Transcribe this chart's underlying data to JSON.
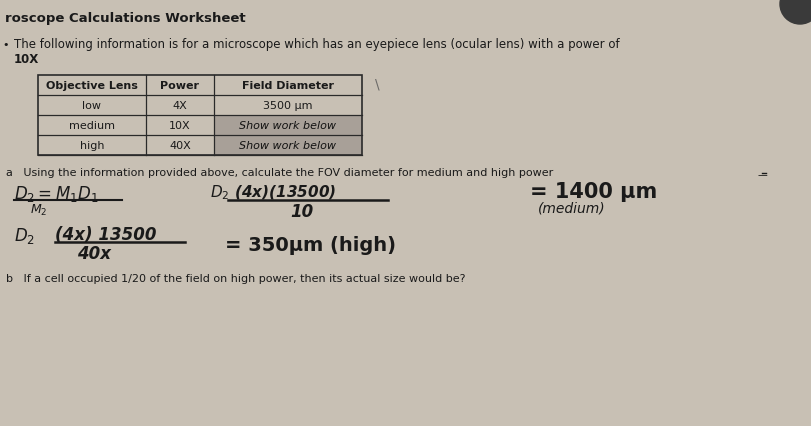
{
  "background_color": "#c8c0b4",
  "paper_color": "#d4ccc0",
  "title": "roscope Calculations Worksheet",
  "intro_line1": "The following information is for a microscope which has an eyepiece lens (ocular lens) with a power of",
  "intro_line2": "10X",
  "table_headers": [
    "Objective Lens",
    "Power",
    "Field Diameter"
  ],
  "table_rows": [
    [
      "low",
      "4X",
      "3500 μm"
    ],
    [
      "medium",
      "10X",
      "Show work below"
    ],
    [
      "high",
      "40X",
      "Show work below"
    ]
  ],
  "table_shaded_color": "#a8a098",
  "question_a": "a   Using the information provided above, calculate the FOV diameter for medium and high power",
  "question_b": "b   If a cell occupied 1/20 of the field on high power, then its actual size would be?",
  "text_color": "#1a1a1a",
  "handwritten_color": "#1a1a1a",
  "table_border_color": "#2a2a2a",
  "circle_color": "#3a3a3a"
}
